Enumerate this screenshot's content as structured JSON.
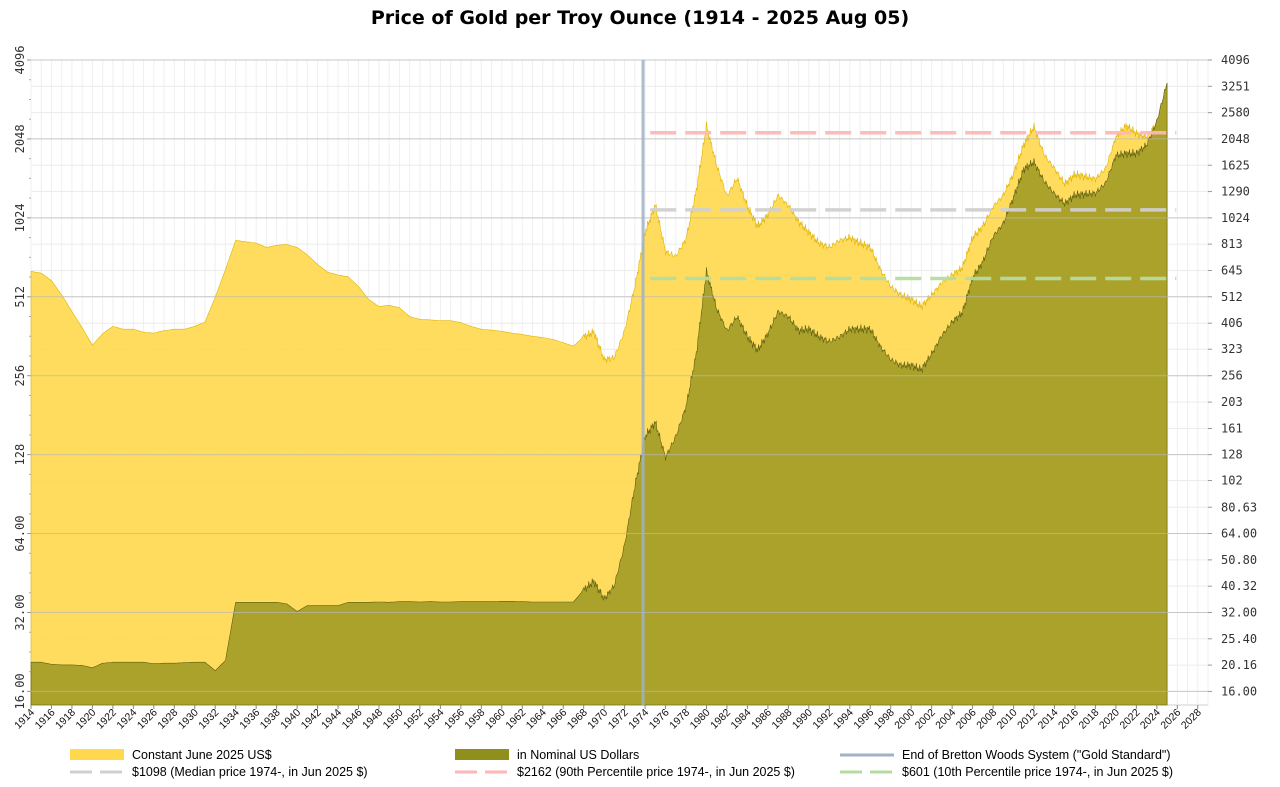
{
  "chart_data": {
    "type": "area",
    "title": "Price of Gold per Troy Ounce (1914 - 2025 Aug 05)",
    "xlabel": "",
    "ylabel": "",
    "scale": "log2",
    "xlim": [
      1914,
      2029
    ],
    "ylim": [
      14.2,
      4096
    ],
    "x_ticks": [
      1914,
      1916,
      1918,
      1920,
      1922,
      1924,
      1926,
      1928,
      1930,
      1932,
      1934,
      1936,
      1938,
      1940,
      1942,
      1944,
      1946,
      1948,
      1950,
      1952,
      1954,
      1956,
      1958,
      1960,
      1962,
      1964,
      1966,
      1968,
      1970,
      1972,
      1974,
      1976,
      1978,
      1980,
      1982,
      1984,
      1986,
      1988,
      1990,
      1992,
      1994,
      1996,
      1998,
      2000,
      2002,
      2004,
      2006,
      2008,
      2010,
      2012,
      2014,
      2016,
      2018,
      2020,
      2022,
      2024,
      2026,
      2028
    ],
    "left_ticks": [
      {
        "label": "16.00",
        "value": 16
      },
      {
        "label": "32.00",
        "value": 32
      },
      {
        "label": "64.00",
        "value": 64
      },
      {
        "label": "128",
        "value": 128
      },
      {
        "label": "256",
        "value": 256
      },
      {
        "label": "512",
        "value": 512
      },
      {
        "label": "1024",
        "value": 1024
      },
      {
        "label": "2048",
        "value": 2048
      },
      {
        "label": "4096",
        "value": 4096
      }
    ],
    "right_ticks": [
      {
        "label": "16.00",
        "value": 16
      },
      {
        "label": "20.16",
        "value": 20.16
      },
      {
        "label": "25.40",
        "value": 25.4
      },
      {
        "label": "32.00",
        "value": 32
      },
      {
        "label": "40.32",
        "value": 40.32
      },
      {
        "label": "50.80",
        "value": 50.8
      },
      {
        "label": "64.00",
        "value": 64
      },
      {
        "label": "80.63",
        "value": 80.63
      },
      {
        "label": "102",
        "value": 102
      },
      {
        "label": "128",
        "value": 128
      },
      {
        "label": "161",
        "value": 161
      },
      {
        "label": "203",
        "value": 203
      },
      {
        "label": "256",
        "value": 256
      },
      {
        "label": "323",
        "value": 323
      },
      {
        "label": "406",
        "value": 406
      },
      {
        "label": "512",
        "value": 512
      },
      {
        "label": "645",
        "value": 645
      },
      {
        "label": "813",
        "value": 813
      },
      {
        "label": "1024",
        "value": 1024
      },
      {
        "label": "1290",
        "value": 1290
      },
      {
        "label": "1625",
        "value": 1625
      },
      {
        "label": "2048",
        "value": 2048
      },
      {
        "label": "2580",
        "value": 2580
      },
      {
        "label": "3251",
        "value": 3251
      },
      {
        "label": "4096",
        "value": 4096
      }
    ],
    "series": [
      {
        "name": "Constant June 2025 US$",
        "color": "#ffd84d",
        "points": [
          [
            1914,
            640
          ],
          [
            1915,
            630
          ],
          [
            1916,
            590
          ],
          [
            1917,
            520
          ],
          [
            1918,
            450
          ],
          [
            1919,
            390
          ],
          [
            1920,
            335
          ],
          [
            1921,
            370
          ],
          [
            1922,
            395
          ],
          [
            1923,
            385
          ],
          [
            1924,
            385
          ],
          [
            1925,
            375
          ],
          [
            1926,
            372
          ],
          [
            1927,
            380
          ],
          [
            1928,
            385
          ],
          [
            1929,
            385
          ],
          [
            1930,
            395
          ],
          [
            1931,
            410
          ],
          [
            1932,
            510
          ],
          [
            1933,
            650
          ],
          [
            1934,
            840
          ],
          [
            1935,
            830
          ],
          [
            1936,
            820
          ],
          [
            1937,
            790
          ],
          [
            1938,
            805
          ],
          [
            1939,
            810
          ],
          [
            1940,
            790
          ],
          [
            1941,
            740
          ],
          [
            1942,
            680
          ],
          [
            1943,
            635
          ],
          [
            1944,
            620
          ],
          [
            1945,
            610
          ],
          [
            1946,
            560
          ],
          [
            1947,
            500
          ],
          [
            1948,
            470
          ],
          [
            1949,
            475
          ],
          [
            1950,
            465
          ],
          [
            1951,
            430
          ],
          [
            1952,
            420
          ],
          [
            1953,
            418
          ],
          [
            1954,
            415
          ],
          [
            1955,
            415
          ],
          [
            1956,
            408
          ],
          [
            1957,
            395
          ],
          [
            1958,
            385
          ],
          [
            1959,
            382
          ],
          [
            1960,
            378
          ],
          [
            1961,
            372
          ],
          [
            1962,
            368
          ],
          [
            1963,
            362
          ],
          [
            1964,
            358
          ],
          [
            1965,
            352
          ],
          [
            1966,
            342
          ],
          [
            1967,
            332
          ],
          [
            1968,
            360
          ],
          [
            1969,
            375
          ],
          [
            1970,
            295
          ],
          [
            1971,
            300
          ],
          [
            1972,
            380
          ],
          [
            1973,
            560
          ],
          [
            1974,
            900
          ],
          [
            1975,
            1150
          ],
          [
            1976,
            760
          ],
          [
            1977,
            730
          ],
          [
            1978,
            850
          ],
          [
            1979,
            1300
          ],
          [
            1980,
            2300
          ],
          [
            1981,
            1620
          ],
          [
            1982,
            1240
          ],
          [
            1983,
            1450
          ],
          [
            1984,
            1130
          ],
          [
            1985,
            950
          ],
          [
            1986,
            1050
          ],
          [
            1987,
            1250
          ],
          [
            1988,
            1140
          ],
          [
            1989,
            990
          ],
          [
            1990,
            900
          ],
          [
            1991,
            820
          ],
          [
            1992,
            790
          ],
          [
            1993,
            840
          ],
          [
            1994,
            860
          ],
          [
            1995,
            820
          ],
          [
            1996,
            790
          ],
          [
            1997,
            650
          ],
          [
            1998,
            560
          ],
          [
            1999,
            520
          ],
          [
            2000,
            500
          ],
          [
            2001,
            470
          ],
          [
            2002,
            520
          ],
          [
            2003,
            580
          ],
          [
            2004,
            620
          ],
          [
            2005,
            660
          ],
          [
            2006,
            860
          ],
          [
            2007,
            950
          ],
          [
            2008,
            1130
          ],
          [
            2009,
            1250
          ],
          [
            2010,
            1510
          ],
          [
            2011,
            1950
          ],
          [
            2012,
            2280
          ],
          [
            2013,
            1780
          ],
          [
            2014,
            1580
          ],
          [
            2015,
            1380
          ],
          [
            2016,
            1500
          ],
          [
            2017,
            1470
          ],
          [
            2018,
            1440
          ],
          [
            2019,
            1580
          ],
          [
            2020,
            2080
          ],
          [
            2021,
            2300
          ],
          [
            2022,
            2150
          ],
          [
            2023,
            2080
          ],
          [
            2024,
            2380
          ],
          [
            2025,
            3350
          ]
        ]
      },
      {
        "name": "in Nominal US Dollars",
        "color": "#8f8f1c",
        "points": [
          [
            1914,
            20.67
          ],
          [
            1915,
            20.67
          ],
          [
            1916,
            20.3
          ],
          [
            1917,
            20.2
          ],
          [
            1918,
            20.2
          ],
          [
            1919,
            20.1
          ],
          [
            1920,
            19.7
          ],
          [
            1921,
            20.5
          ],
          [
            1922,
            20.67
          ],
          [
            1923,
            20.67
          ],
          [
            1924,
            20.67
          ],
          [
            1925,
            20.67
          ],
          [
            1926,
            20.4
          ],
          [
            1927,
            20.5
          ],
          [
            1928,
            20.5
          ],
          [
            1929,
            20.6
          ],
          [
            1930,
            20.67
          ],
          [
            1931,
            20.67
          ],
          [
            1932,
            19.2
          ],
          [
            1933,
            21
          ],
          [
            1934,
            35
          ],
          [
            1935,
            35
          ],
          [
            1936,
            35
          ],
          [
            1937,
            35
          ],
          [
            1938,
            35
          ],
          [
            1939,
            34.5
          ],
          [
            1940,
            32.3
          ],
          [
            1941,
            34
          ],
          [
            1942,
            34
          ],
          [
            1943,
            34
          ],
          [
            1944,
            34
          ],
          [
            1945,
            35
          ],
          [
            1946,
            35
          ],
          [
            1947,
            35
          ],
          [
            1948,
            35.1
          ],
          [
            1949,
            35
          ],
          [
            1950,
            35.2
          ],
          [
            1951,
            35.2
          ],
          [
            1952,
            35.1
          ],
          [
            1953,
            35.2
          ],
          [
            1954,
            35.1
          ],
          [
            1955,
            35.1
          ],
          [
            1956,
            35.2
          ],
          [
            1957,
            35.2
          ],
          [
            1958,
            35.2
          ],
          [
            1959,
            35.2
          ],
          [
            1960,
            35.3
          ],
          [
            1961,
            35.3
          ],
          [
            1962,
            35.2
          ],
          [
            1963,
            35.1
          ],
          [
            1964,
            35.1
          ],
          [
            1965,
            35.1
          ],
          [
            1966,
            35.1
          ],
          [
            1967,
            35.1
          ],
          [
            1968,
            39
          ],
          [
            1969,
            42
          ],
          [
            1970,
            36
          ],
          [
            1971,
            40.6
          ],
          [
            1972,
            58
          ],
          [
            1973,
            97
          ],
          [
            1974,
            150
          ],
          [
            1975,
            170
          ],
          [
            1976,
            125
          ],
          [
            1977,
            150
          ],
          [
            1978,
            195
          ],
          [
            1979,
            310
          ],
          [
            1980,
            640
          ],
          [
            1981,
            460
          ],
          [
            1982,
            380
          ],
          [
            1983,
            430
          ],
          [
            1984,
            360
          ],
          [
            1985,
            320
          ],
          [
            1986,
            370
          ],
          [
            1987,
            450
          ],
          [
            1988,
            430
          ],
          [
            1989,
            380
          ],
          [
            1990,
            385
          ],
          [
            1991,
            360
          ],
          [
            1992,
            345
          ],
          [
            1993,
            360
          ],
          [
            1994,
            385
          ],
          [
            1995,
            385
          ],
          [
            1996,
            385
          ],
          [
            1997,
            330
          ],
          [
            1998,
            295
          ],
          [
            1999,
            280
          ],
          [
            2000,
            280
          ],
          [
            2001,
            270
          ],
          [
            2002,
            310
          ],
          [
            2003,
            365
          ],
          [
            2004,
            410
          ],
          [
            2005,
            445
          ],
          [
            2006,
            605
          ],
          [
            2007,
            695
          ],
          [
            2008,
            870
          ],
          [
            2009,
            975
          ],
          [
            2010,
            1225
          ],
          [
            2011,
            1570
          ],
          [
            2012,
            1670
          ],
          [
            2013,
            1410
          ],
          [
            2014,
            1265
          ],
          [
            2015,
            1160
          ],
          [
            2016,
            1250
          ],
          [
            2017,
            1260
          ],
          [
            2018,
            1270
          ],
          [
            2019,
            1390
          ],
          [
            2020,
            1770
          ],
          [
            2021,
            1800
          ],
          [
            2022,
            1800
          ],
          [
            2023,
            1940
          ],
          [
            2024,
            2390
          ],
          [
            2025,
            3350
          ]
        ]
      }
    ],
    "reference_lines": [
      {
        "label": "$1098 (Median price 1974-, in Jun 2025 $)",
        "value": 1098,
        "color": "#d0d0d0",
        "dashed": true
      },
      {
        "label": "$2162 (90th Percentile price 1974-, in Jun 2025 $)",
        "value": 2162,
        "color": "#ffb6b6",
        "dashed": true
      },
      {
        "label": "$601 (10th Percentile price 1974-, in Jun 2025 $)",
        "value": 601,
        "color": "#b5dca0",
        "dashed": true
      }
    ],
    "vertical_line": {
      "label": "End of Bretton Woods System (\"Gold Standard\")",
      "x": 1973.8,
      "color": "#9fb2c6"
    },
    "legend_position": "bottom",
    "grid": true
  }
}
